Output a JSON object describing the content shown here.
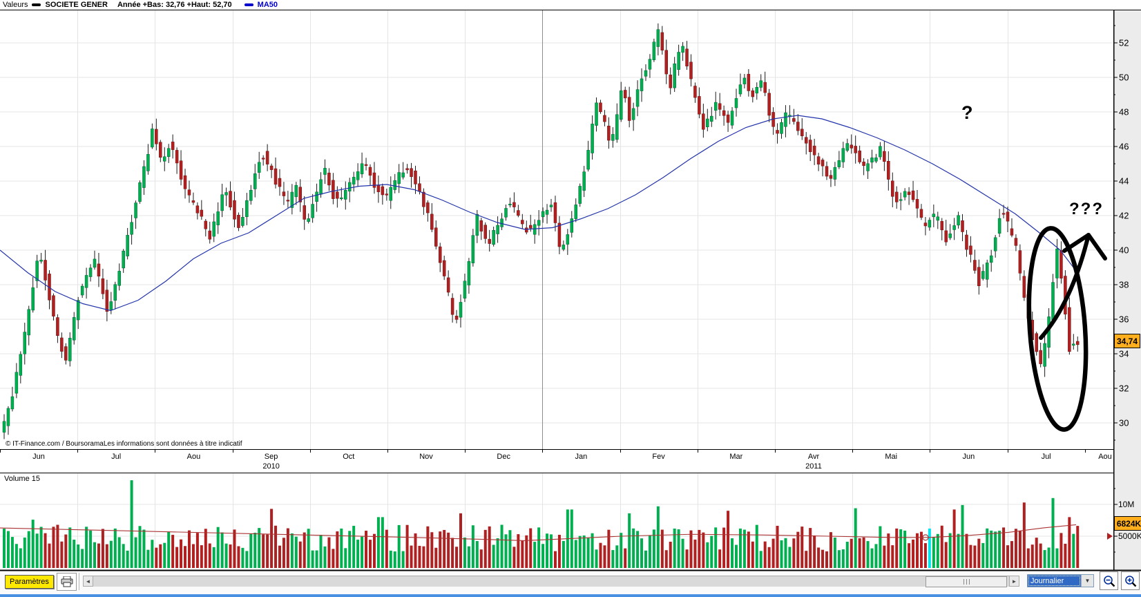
{
  "header": {
    "left_label": "Valeurs",
    "series_name": "SOCIETE GENER",
    "range_info": "Année +Bas: 32,76 +Haut: 52,70",
    "ma_label": "MA50"
  },
  "copyright": "© IT-Finance.com / BoursoramaLes informations sont données à titre indicatif",
  "annotations": {
    "question_single": "?",
    "question_triple": "???"
  },
  "toolbar": {
    "parametres_label": "Paramètres",
    "scroll_left": "◄",
    "scroll_right": "►",
    "period_value": "Journalier",
    "dropdown_arrow": "▼"
  },
  "chart_data": {
    "type": "candlestick",
    "title": "SOCIETE GENER — daily candles with MA50 and volume",
    "year_low_label": "32,76",
    "year_high_label": "52,70",
    "last_price_label": "34,74",
    "y_axis": {
      "ticks": [
        52,
        50,
        48,
        46,
        44,
        42,
        40,
        38,
        36,
        34,
        32,
        30
      ],
      "minor_step": 1,
      "range_visible": [
        28.4,
        53.9
      ]
    },
    "x_labels": [
      "Jun",
      "Jul",
      "Aou",
      "Sep",
      "Oct",
      "Nov",
      "Dec",
      "Jan",
      "Fev",
      "Mar",
      "Avr",
      "Mai",
      "Jun",
      "Jul",
      "Aou"
    ],
    "year_labels": [
      {
        "text": "2010",
        "month_index": 3
      },
      {
        "text": "2011",
        "month_index": 10
      }
    ],
    "year_separator_month_index": 7,
    "legend": [
      {
        "name": "SOCIETE GENER",
        "type": "candlestick"
      },
      {
        "name": "MA50",
        "type": "line"
      }
    ],
    "price_path": [
      [
        4,
        29.6
      ],
      [
        14,
        30.8
      ],
      [
        30,
        33.5
      ],
      [
        45,
        37.0
      ],
      [
        58,
        40.2
      ],
      [
        75,
        36.8
      ],
      [
        95,
        33.5
      ],
      [
        118,
        37.8
      ],
      [
        137,
        39.6
      ],
      [
        158,
        36.4
      ],
      [
        180,
        39.8
      ],
      [
        200,
        43.0
      ],
      [
        222,
        46.8
      ],
      [
        235,
        45.2
      ],
      [
        248,
        46.3
      ],
      [
        270,
        43.5
      ],
      [
        306,
        40.8
      ],
      [
        327,
        43.6
      ],
      [
        348,
        41.2
      ],
      [
        368,
        44.0
      ],
      [
        380,
        45.8
      ],
      [
        400,
        44.0
      ],
      [
        417,
        42.5
      ],
      [
        430,
        43.8
      ],
      [
        443,
        41.4
      ],
      [
        458,
        43.0
      ],
      [
        470,
        44.8
      ],
      [
        484,
        43.2
      ],
      [
        496,
        42.9
      ],
      [
        512,
        44.2
      ],
      [
        528,
        45.0
      ],
      [
        544,
        43.8
      ],
      [
        560,
        43.0
      ],
      [
        576,
        44.2
      ],
      [
        591,
        44.9
      ],
      [
        608,
        43.4
      ],
      [
        623,
        42.0
      ],
      [
        644,
        38.5
      ],
      [
        660,
        35.7
      ],
      [
        676,
        38.2
      ],
      [
        691,
        42.0
      ],
      [
        707,
        40.3
      ],
      [
        722,
        41.5
      ],
      [
        739,
        42.8
      ],
      [
        756,
        41.5
      ],
      [
        771,
        41.0
      ],
      [
        785,
        42.0
      ],
      [
        800,
        42.6
      ],
      [
        813,
        39.6
      ],
      [
        830,
        42.0
      ],
      [
        845,
        44.2
      ],
      [
        866,
        48.5
      ],
      [
        887,
        46.1
      ],
      [
        903,
        49.5
      ],
      [
        913,
        47.6
      ],
      [
        930,
        49.8
      ],
      [
        942,
        51.0
      ],
      [
        955,
        52.7
      ],
      [
        971,
        49.2
      ],
      [
        987,
        52.2
      ],
      [
        1003,
        49.5
      ],
      [
        1019,
        46.9
      ],
      [
        1040,
        48.5
      ],
      [
        1056,
        47.3
      ],
      [
        1077,
        50.3
      ],
      [
        1090,
        49.0
      ],
      [
        1103,
        49.9
      ],
      [
        1124,
        46.6
      ],
      [
        1140,
        48.0
      ],
      [
        1161,
        46.7
      ],
      [
        1175,
        45.8
      ],
      [
        1188,
        44.9
      ],
      [
        1203,
        44.1
      ],
      [
        1218,
        45.3
      ],
      [
        1230,
        46.4
      ],
      [
        1251,
        44.6
      ],
      [
        1265,
        45.3
      ],
      [
        1277,
        45.9
      ],
      [
        1298,
        42.6
      ],
      [
        1314,
        43.6
      ],
      [
        1330,
        42.2
      ],
      [
        1341,
        41.4
      ],
      [
        1357,
        42.1
      ],
      [
        1372,
        40.6
      ],
      [
        1388,
        41.9
      ],
      [
        1404,
        39.9
      ],
      [
        1420,
        38.0
      ],
      [
        1436,
        39.8
      ],
      [
        1452,
        42.6
      ],
      [
        1464,
        41.0
      ],
      [
        1473,
        40.0
      ],
      [
        1489,
        36.1
      ],
      [
        1508,
        33.2
      ],
      [
        1519,
        35.5
      ],
      [
        1531,
        40.1
      ],
      [
        1541,
        37.5
      ],
      [
        1550,
        34.3
      ],
      [
        1558,
        34.74
      ]
    ],
    "ma50": [
      [
        0,
        40.0
      ],
      [
        40,
        38.7
      ],
      [
        80,
        37.6
      ],
      [
        120,
        36.9
      ],
      [
        160,
        36.5
      ],
      [
        200,
        37.1
      ],
      [
        240,
        38.2
      ],
      [
        280,
        39.5
      ],
      [
        320,
        40.4
      ],
      [
        360,
        41.0
      ],
      [
        400,
        42.0
      ],
      [
        440,
        43.0
      ],
      [
        480,
        43.4
      ],
      [
        520,
        43.7
      ],
      [
        560,
        43.8
      ],
      [
        600,
        43.5
      ],
      [
        640,
        42.9
      ],
      [
        680,
        42.2
      ],
      [
        720,
        41.6
      ],
      [
        760,
        41.2
      ],
      [
        800,
        41.3
      ],
      [
        840,
        41.8
      ],
      [
        880,
        42.4
      ],
      [
        920,
        43.2
      ],
      [
        960,
        44.2
      ],
      [
        1000,
        45.3
      ],
      [
        1040,
        46.3
      ],
      [
        1080,
        47.1
      ],
      [
        1120,
        47.6
      ],
      [
        1155,
        47.8
      ],
      [
        1190,
        47.6
      ],
      [
        1230,
        47.1
      ],
      [
        1270,
        46.5
      ],
      [
        1310,
        45.8
      ],
      [
        1350,
        45.0
      ],
      [
        1390,
        44.1
      ],
      [
        1430,
        43.1
      ],
      [
        1470,
        42.1
      ],
      [
        1505,
        41.0
      ],
      [
        1535,
        40.0
      ],
      [
        1558,
        38.8
      ]
    ],
    "volume": {
      "panel_label": "Volume 15",
      "axis_ticks": [
        {
          "label": "10M",
          "millions": 10
        },
        {
          "label": "5000K",
          "millions": 5
        }
      ],
      "minor_tick_millions": [
        2.5,
        7.5,
        12.5
      ],
      "current_label": "6824K",
      "current_millions": 6.824,
      "ma": [
        [
          0,
          6.3
        ],
        [
          120,
          6.0
        ],
        [
          240,
          5.7
        ],
        [
          360,
          5.4
        ],
        [
          480,
          5.1
        ],
        [
          600,
          4.8
        ],
        [
          700,
          4.5
        ],
        [
          760,
          4.3
        ],
        [
          820,
          4.6
        ],
        [
          900,
          5.0
        ],
        [
          1000,
          5.3
        ],
        [
          1100,
          5.2
        ],
        [
          1200,
          5.0
        ],
        [
          1290,
          4.8
        ],
        [
          1345,
          4.8
        ],
        [
          1400,
          5.1
        ],
        [
          1460,
          5.6
        ],
        [
          1510,
          6.3
        ],
        [
          1558,
          6.8
        ]
      ],
      "spikes": [
        [
          48,
          7.6,
          "g"
        ],
        [
          191,
          13.8,
          "g"
        ],
        [
          390,
          9.3,
          "r"
        ],
        [
          549,
          8.0,
          "g"
        ],
        [
          663,
          8.6,
          "r"
        ],
        [
          823,
          9.2,
          "g"
        ],
        [
          908,
          8.6,
          "g"
        ],
        [
          950,
          9.7,
          "g"
        ],
        [
          1050,
          9.0,
          "r"
        ],
        [
          1235,
          9.4,
          "g"
        ],
        [
          1345,
          6.2,
          "c"
        ],
        [
          1379,
          9.2,
          "r"
        ],
        [
          1392,
          9.9,
          "g"
        ],
        [
          1483,
          10.3,
          "r"
        ],
        [
          1520,
          11.0,
          "g"
        ],
        [
          1545,
          8.0,
          "r"
        ]
      ]
    },
    "colors": {
      "up": "#00b050",
      "down": "#b02020",
      "highlight_bar": "#00e5ee",
      "ma50_line": "#2233aa",
      "volume_ma_line": "#aa3333",
      "grid": "#e4e4e4",
      "year_line": "#8c8c8c",
      "axis_panel": "#ececec",
      "price_flag": "#ffaf1e",
      "annotation": "#000000"
    }
  }
}
